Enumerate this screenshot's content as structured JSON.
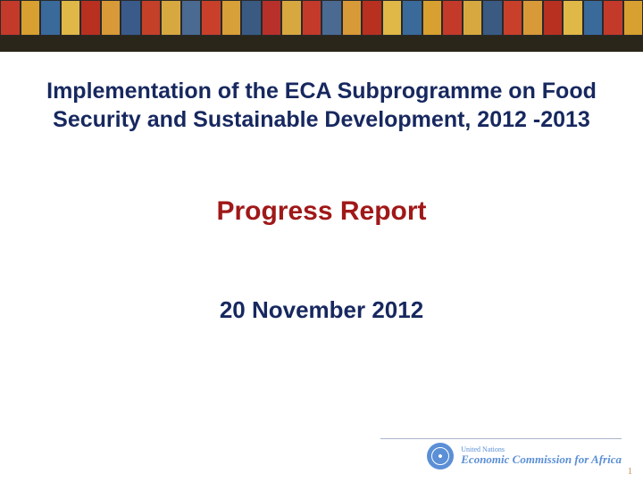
{
  "banner": {
    "panes": [
      "#c43a2a",
      "#d8a030",
      "#3a6a9a",
      "#e0b848",
      "#b83020",
      "#d89a38",
      "#3a5a8a",
      "#c44028",
      "#d8a840",
      "#4a6a92",
      "#c8402a",
      "#d8a038",
      "#3a5a82",
      "#b8302a",
      "#d8a840",
      "#c43a2a",
      "#4a6a92",
      "#d89a38",
      "#b83020",
      "#e0b848",
      "#3a6a9a",
      "#d8a030",
      "#c43a2a",
      "#d8a840",
      "#3a5a82",
      "#c8402a",
      "#d89a38",
      "#b83020",
      "#e0b848",
      "#3a6a9a",
      "#c43a2a",
      "#d8a030"
    ],
    "strip_color": "#2a261a"
  },
  "title": "Implementation of the ECA Subprogramme on Food Security and Sustainable Development, 2012 -2013",
  "subtitle": "Progress Report",
  "date": "20 November 2012",
  "title_color": "#17285f",
  "subtitle_color": "#a01818",
  "date_color": "#17285f",
  "logo": {
    "line1": "United Nations",
    "line2": "Economic Commission for Africa",
    "color": "#5b8fd6"
  },
  "page_number": "1"
}
